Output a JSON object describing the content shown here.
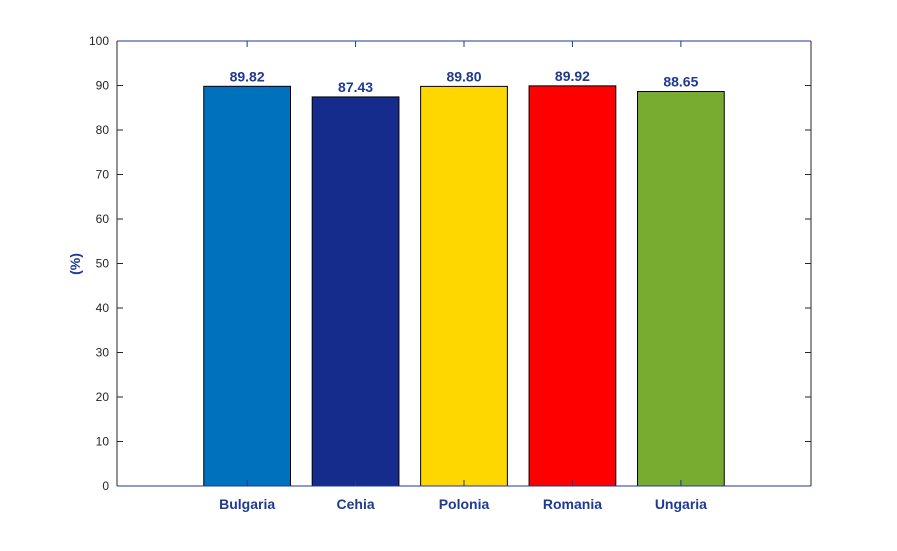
{
  "chart_data": {
    "type": "bar",
    "categories": [
      "Bulgaria",
      "Cehia",
      "Polonia",
      "Romania",
      "Ungaria"
    ],
    "values": [
      89.82,
      87.43,
      89.8,
      89.92,
      88.65
    ],
    "data_labels": [
      "89.82",
      "87.43",
      "89.80",
      "89.92",
      "88.65"
    ],
    "bar_colors": [
      "#0072BD",
      "#162C8C",
      "#FFD700",
      "#FF0000",
      "#77AC30"
    ],
    "title": "",
    "xlabel": "",
    "ylabel": "(%)",
    "ylim": [
      0,
      100
    ],
    "xlim": [
      -0.2,
      6.2
    ],
    "yticks": [
      0,
      10,
      20,
      30,
      40,
      50,
      60,
      70,
      80,
      90,
      100
    ],
    "grid": false,
    "label_color": "#1F3A93"
  }
}
